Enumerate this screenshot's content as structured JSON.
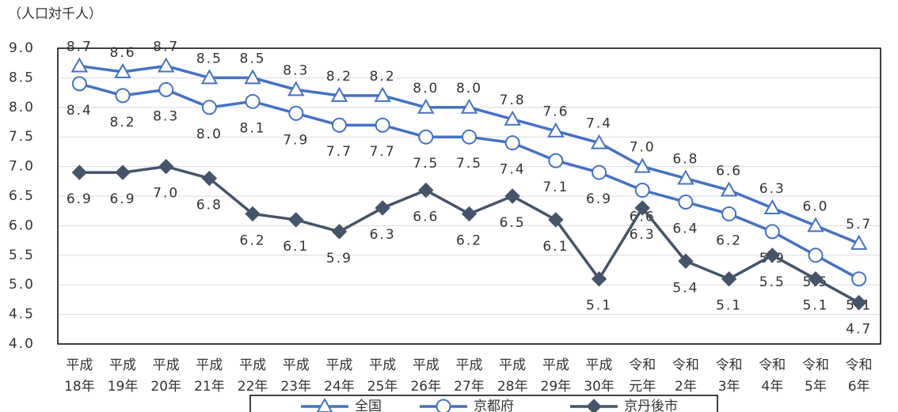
{
  "chart_data": {
    "type": "line",
    "ylabel": "（人口対千人）",
    "categories": [
      "平成18年",
      "平成19年",
      "平成20年",
      "平成21年",
      "平成22年",
      "平成23年",
      "平成24年",
      "平成25年",
      "平成26年",
      "平成27年",
      "平成28年",
      "平成29年",
      "平成30年",
      "令和元年",
      "令和2年",
      "令和3年",
      "令和4年",
      "令和5年",
      "令和6年"
    ],
    "ylim": [
      4.0,
      9.0
    ],
    "yticks": [
      {
        "value": 4.0,
        "label": "4.0"
      },
      {
        "value": 4.5,
        "label": "4.5"
      },
      {
        "value": 5.0,
        "label": "5.0"
      },
      {
        "value": 5.5,
        "label": "5.5"
      },
      {
        "value": 6.0,
        "label": "6.0"
      },
      {
        "value": 6.5,
        "label": "6.5"
      },
      {
        "value": 7.0,
        "label": "7.0"
      },
      {
        "value": 7.5,
        "label": "7.5"
      },
      {
        "value": 8.0,
        "label": "8.0"
      },
      {
        "value": 8.5,
        "label": "8.5"
      },
      {
        "value": 9.0,
        "label": "9.0"
      }
    ],
    "grid": true,
    "legend": "bottom",
    "series": [
      {
        "name": "全国",
        "color": "#4472c4",
        "marker": "triangle",
        "values": [
          8.7,
          8.6,
          8.7,
          8.5,
          8.5,
          8.3,
          8.2,
          8.2,
          8.0,
          8.0,
          7.8,
          7.6,
          7.4,
          7.0,
          6.8,
          6.6,
          6.3,
          6.0,
          5.7
        ],
        "value_labels": [
          "8.7",
          "8.6",
          "8.7",
          "8.5",
          "8.5",
          "8.3",
          "8.2",
          "8.2",
          "8.0",
          "8.0",
          "7.8",
          "7.6",
          "7.4",
          "7.0",
          "6.8",
          "6.6",
          "6.3",
          "6.0",
          "5.7"
        ]
      },
      {
        "name": "京都府",
        "color": "#4472c4",
        "marker": "circle",
        "values": [
          8.4,
          8.2,
          8.3,
          8.0,
          8.1,
          7.9,
          7.7,
          7.7,
          7.5,
          7.5,
          7.4,
          7.1,
          6.9,
          6.6,
          6.4,
          6.2,
          5.9,
          5.5,
          5.1
        ],
        "value_labels": [
          "8.4",
          "8.2",
          "8.3",
          "8.0",
          "8.1",
          "7.9",
          "7.7",
          "7.7",
          "7.5",
          "7.5",
          "7.4",
          "7.1",
          "6.9",
          "6.6",
          "6.4",
          "6.2",
          "5.9",
          "5.5",
          "5.1"
        ]
      },
      {
        "name": "京丹後市",
        "color": "#44546a",
        "marker": "diamond",
        "values": [
          6.9,
          6.9,
          7.0,
          6.8,
          6.2,
          6.1,
          5.9,
          6.3,
          6.6,
          6.2,
          6.5,
          6.1,
          5.1,
          6.3,
          5.4,
          5.1,
          5.5,
          5.1,
          4.7
        ],
        "value_labels": [
          "6.9",
          "6.9",
          "7.0",
          "6.8",
          "6.2",
          "6.1",
          "5.9",
          "6.3",
          "6.6",
          "6.2",
          "6.5",
          "6.1",
          "5.1",
          "6.3",
          "5.4",
          "5.1",
          "5.5",
          "5.1",
          "4.7"
        ]
      }
    ]
  }
}
